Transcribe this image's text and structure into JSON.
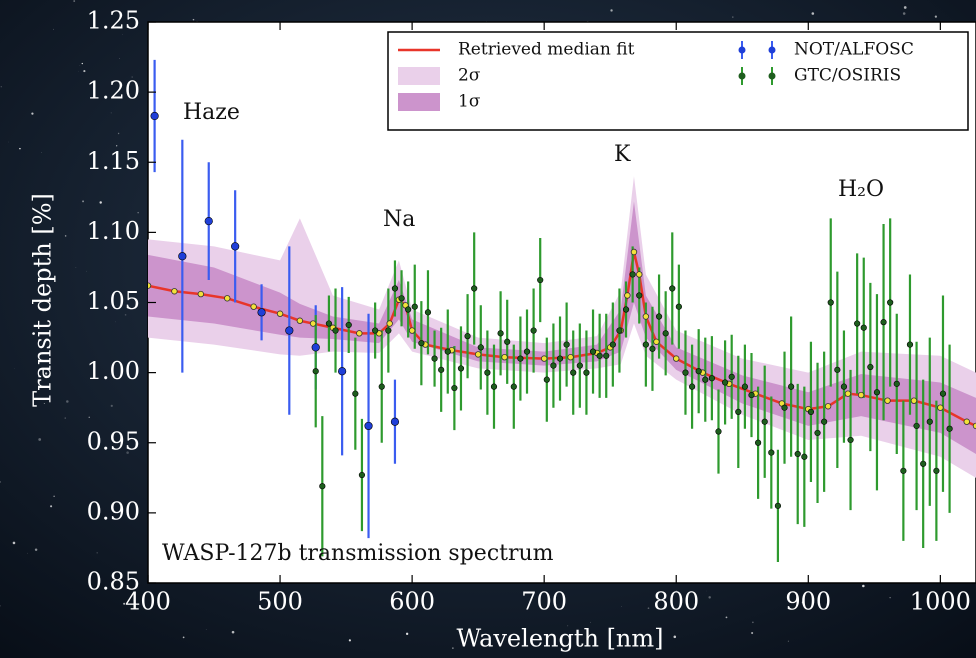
{
  "chart_data": {
    "type": "errorbar",
    "x_label": "Wavelength [nm]",
    "y_label": "Transit depth [%]",
    "annotations": [
      "Haze",
      "Na",
      "K",
      "H₂O",
      "WASP-127b  transmission spectrum"
    ],
    "xlim": [
      400,
      1027
    ],
    "ylim": [
      0.85,
      1.25
    ],
    "xticks": [
      400,
      500,
      600,
      700,
      800,
      900,
      1000
    ],
    "yticks": [
      0.85,
      {
        "value": 0.9,
        "label": "0.90"
      },
      0.95,
      {
        "value": 1,
        "label": "1.00"
      },
      1.05,
      {
        "value": 1.1,
        "label": "1.10"
      },
      1.15,
      {
        "value": 1.2,
        "label": "1.20"
      },
      1.25
    ],
    "model": {
      "name": "Retrieved median fit",
      "color": "#e8352a",
      "marker_color": "#f2e23a",
      "x": [
        400,
        420,
        440,
        460,
        480,
        500,
        515,
        525,
        540,
        560,
        575,
        583,
        590,
        595,
        600,
        610,
        630,
        650,
        670,
        700,
        720,
        740,
        750,
        758,
        763,
        768,
        772,
        777,
        785,
        800,
        820,
        840,
        860,
        880,
        900,
        915,
        930,
        940,
        960,
        980,
        1000,
        1020,
        1027
      ],
      "values": [
        1.062,
        1.058,
        1.056,
        1.053,
        1.047,
        1.042,
        1.037,
        1.035,
        1.032,
        1.028,
        1.028,
        1.035,
        1.052,
        1.048,
        1.03,
        1.02,
        1.016,
        1.013,
        1.011,
        1.01,
        1.011,
        1.014,
        1.018,
        1.03,
        1.055,
        1.086,
        1.07,
        1.04,
        1.022,
        1.01,
        1.0,
        0.992,
        0.985,
        0.978,
        0.974,
        0.976,
        0.985,
        0.984,
        0.98,
        0.98,
        0.975,
        0.965,
        0.962
      ]
    },
    "bands": [
      {
        "name": "2σ",
        "color": "#ead0ea",
        "x": [
          400,
          450,
          500,
          515,
          540,
          575,
          590,
          600,
          650,
          700,
          740,
          758,
          768,
          777,
          800,
          850,
          900,
          940,
          1000,
          1027
        ],
        "lower": [
          1.025,
          1.02,
          1.013,
          1.012,
          1.015,
          1.014,
          1.028,
          1.015,
          1.003,
          1.0,
          1.003,
          1.006,
          1.035,
          1.012,
          0.995,
          0.97,
          0.952,
          0.955,
          0.94,
          0.925
        ],
        "upper": [
          1.095,
          1.09,
          1.08,
          1.11,
          1.055,
          1.045,
          1.08,
          1.045,
          1.025,
          1.021,
          1.026,
          1.058,
          1.14,
          1.07,
          1.03,
          1.01,
          1.0,
          1.015,
          1.012,
          1.0
        ]
      },
      {
        "name": "1σ",
        "color": "#cc94cc",
        "x": [
          400,
          450,
          500,
          515,
          540,
          575,
          590,
          600,
          650,
          700,
          740,
          758,
          768,
          777,
          800,
          850,
          900,
          940,
          1000,
          1027
        ],
        "lower": [
          1.04,
          1.035,
          1.027,
          1.025,
          1.024,
          1.021,
          1.038,
          1.022,
          1.008,
          1.005,
          1.008,
          1.015,
          1.05,
          1.025,
          1.002,
          0.978,
          0.962,
          0.969,
          0.957,
          0.942
        ],
        "upper": [
          1.084,
          1.075,
          1.057,
          1.049,
          1.04,
          1.035,
          1.066,
          1.038,
          1.018,
          1.015,
          1.02,
          1.045,
          1.122,
          1.055,
          1.018,
          0.998,
          0.986,
          0.999,
          0.993,
          0.982
        ]
      }
    ],
    "series": [
      {
        "name": "NOT/ALFOSC",
        "color": "#1f3fd8",
        "bar_color": "#3a5cf0",
        "x": [
          405,
          426,
          446,
          466,
          486,
          507,
          527,
          547,
          567,
          587
        ],
        "values": [
          1.183,
          1.083,
          1.108,
          1.09,
          1.043,
          1.03,
          1.018,
          1.001,
          0.962,
          0.965
        ],
        "errors": [
          0.04,
          0.083,
          0.042,
          0.04,
          0.02,
          0.06,
          0.03,
          0.06,
          0.08,
          0.03
        ]
      },
      {
        "name": "GTC/OSIRIS",
        "color": "#1e5e1e",
        "bar_color": "#2e9a2e",
        "x": [
          527,
          532,
          537,
          542,
          552,
          557,
          562,
          572,
          577,
          582,
          587,
          592,
          597,
          602,
          607,
          612,
          617,
          622,
          627,
          632,
          637,
          642,
          647,
          652,
          657,
          662,
          667,
          672,
          677,
          682,
          687,
          692,
          697,
          702,
          707,
          712,
          717,
          722,
          727,
          732,
          737,
          742,
          747,
          752,
          757,
          762,
          767,
          772,
          777,
          782,
          787,
          792,
          797,
          802,
          807,
          812,
          817,
          822,
          827,
          832,
          837,
          842,
          847,
          852,
          857,
          862,
          867,
          872,
          877,
          882,
          887,
          892,
          897,
          902,
          907,
          912,
          917,
          922,
          927,
          932,
          937,
          942,
          947,
          952,
          957,
          962,
          967,
          972,
          977,
          982,
          987,
          992,
          997,
          1002,
          1007
        ],
        "values": [
          1.001,
          0.919,
          1.035,
          1.03,
          1.034,
          0.985,
          0.927,
          1.03,
          0.99,
          1.03,
          1.06,
          1.053,
          1.045,
          1.047,
          1.021,
          1.043,
          1.01,
          1.002,
          1.015,
          0.989,
          1.003,
          1.026,
          1.06,
          1.018,
          1.0,
          0.99,
          1.028,
          1.022,
          0.99,
          1.01,
          1.015,
          1.03,
          1.066,
          0.995,
          1.005,
          1.01,
          1.02,
          1.0,
          1.005,
          1.0,
          1.015,
          1.012,
          1.012,
          1.02,
          1.03,
          1.045,
          1.07,
          1.055,
          1.02,
          1.017,
          1.04,
          1.028,
          1.06,
          1.047,
          1.0,
          0.99,
          1.001,
          0.995,
          0.996,
          0.958,
          0.993,
          0.997,
          0.972,
          0.99,
          0.984,
          0.95,
          0.965,
          0.943,
          0.905,
          0.975,
          0.99,
          0.942,
          0.94,
          0.972,
          0.957,
          0.965,
          1.05,
          1.002,
          0.99,
          0.952,
          1.035,
          1.032,
          1.004,
          0.986,
          1.036,
          1.05,
          0.992,
          0.93,
          1.02,
          0.962,
          0.935,
          0.965,
          0.93,
          0.985,
          0.96
        ],
        "errors": [
          0.04,
          0.05,
          0.02,
          0.03,
          0.02,
          0.04,
          0.04,
          0.02,
          0.04,
          0.03,
          0.02,
          0.02,
          0.02,
          0.03,
          0.03,
          0.03,
          0.02,
          0.03,
          0.03,
          0.03,
          0.03,
          0.03,
          0.04,
          0.03,
          0.03,
          0.03,
          0.03,
          0.03,
          0.03,
          0.03,
          0.03,
          0.03,
          0.03,
          0.03,
          0.03,
          0.03,
          0.03,
          0.03,
          0.03,
          0.03,
          0.03,
          0.03,
          0.03,
          0.03,
          0.03,
          0.02,
          0.02,
          0.02,
          0.03,
          0.03,
          0.03,
          0.03,
          0.04,
          0.03,
          0.03,
          0.03,
          0.03,
          0.03,
          0.03,
          0.03,
          0.03,
          0.03,
          0.04,
          0.03,
          0.03,
          0.04,
          0.04,
          0.04,
          0.04,
          0.04,
          0.05,
          0.05,
          0.05,
          0.05,
          0.05,
          0.05,
          0.06,
          0.07,
          0.04,
          0.05,
          0.05,
          0.05,
          0.06,
          0.07,
          0.07,
          0.06,
          0.05,
          0.05,
          0.05,
          0.06,
          0.06,
          0.06,
          0.05,
          0.07,
          0.06
        ]
      }
    ]
  }
}
